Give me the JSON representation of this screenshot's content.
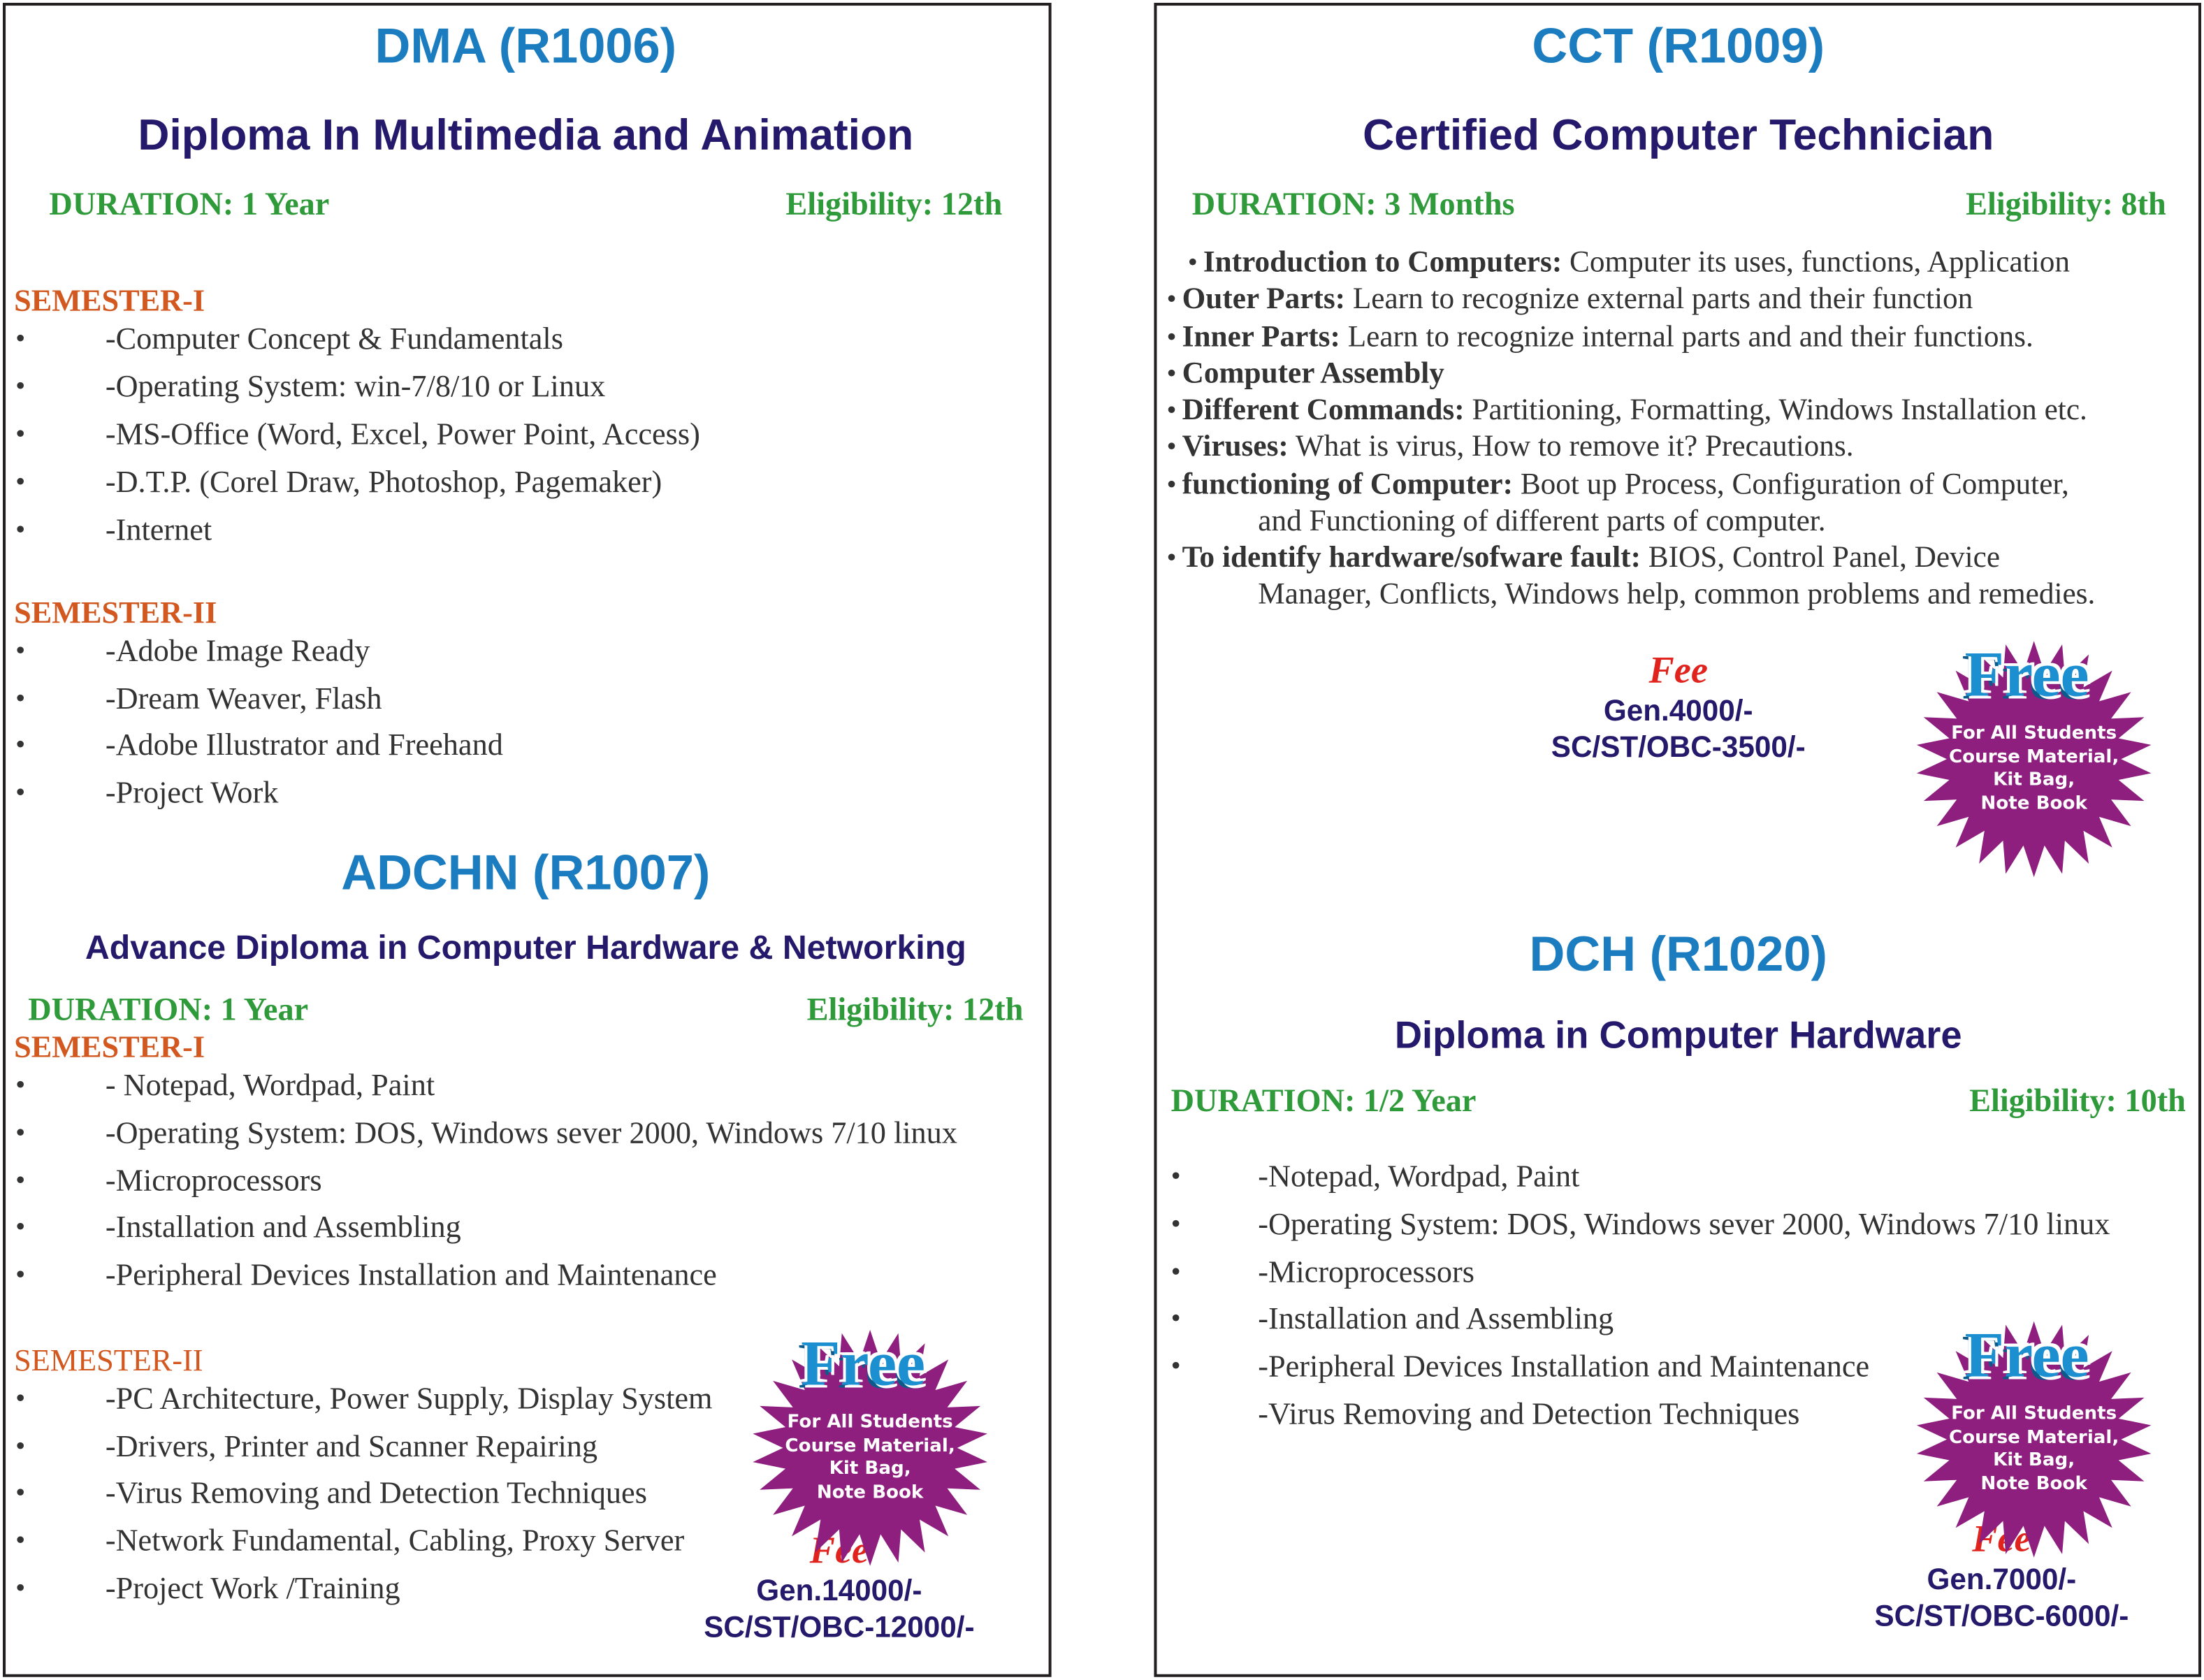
{
  "courses": [
    {
      "code": "DMA (R1006)",
      "name": "Diploma In Multimedia and Animation",
      "duration": "DURATION: 1 Year",
      "eligibility": "Eligibility: 12th",
      "semesters": [
        {
          "label": "SEMESTER-I",
          "items": [
            "-Computer Concept & Fundamentals",
            "-Operating System: win-7/8/10 or Linux",
            "-MS-Office (Word, Excel, Power Point, Access)",
            "-D.T.P. (Corel Draw, Photoshop, Pagemaker)",
            "-Internet"
          ]
        },
        {
          "label": "SEMESTER-II",
          "items": [
            "-Adobe Image Ready",
            "-Dream Weaver, Flash",
            "-Adobe Illustrator and Freehand",
            "-Project Work"
          ]
        }
      ]
    },
    {
      "code": "ADCHN (R1007)",
      "name": "Advance Diploma in Computer Hardware & Networking",
      "duration": "DURATION: 1 Year",
      "eligibility": "Eligibility: 12th",
      "semesters": [
        {
          "label": "SEMESTER-I",
          "items": [
            "- Notepad, Wordpad, Paint",
            "-Operating System: DOS, Windows sever 2000, Windows 7/10 linux",
            "-Microprocessors",
            "-Installation and Assembling",
            "-Peripheral Devices Installation and Maintenance"
          ]
        },
        {
          "label": "SEMESTER-II",
          "items": [
            "-PC Architecture, Power Supply, Display System",
            "-Drivers, Printer and Scanner Repairing",
            "-Virus Removing and Detection Techniques",
            "-Network Fundamental, Cabling, Proxy Server",
            "-Project Work /Training"
          ]
        }
      ],
      "fee": {
        "label": "Fee",
        "general": "Gen.14000/-",
        "reserved": "SC/ST/OBC-12000/-"
      }
    },
    {
      "code": "CCT (R1009)",
      "name": "Certified Computer Technician",
      "duration": "DURATION: 3 Months",
      "eligibility": "Eligibility: 8th",
      "topics": [
        {
          "bold": "Introduction to Computers:",
          "text": " Computer its uses, functions, Application"
        },
        {
          "bold": "Outer Parts:",
          "text": " Learn to recognize external parts and their function"
        },
        {
          "bold": "Inner Parts:",
          "text": " Learn to recognize internal parts and and their functions."
        },
        {
          "bold": "Computer Assembly",
          "text": ""
        },
        {
          "bold": "Different Commands:",
          "text": " Partitioning, Formatting, Windows Installation etc."
        },
        {
          "bold": "Viruses:",
          "text": " What is virus, How to remove it? Precautions."
        },
        {
          "bold": "functioning of Computer:",
          "text": " Boot up Process, Configuration of Computer,",
          "cont": "and Functioning of different parts of computer."
        },
        {
          "bold": "To identify hardware/sofware fault:",
          "text": " BIOS, Control Panel, Device",
          "cont": "Manager, Conflicts, Windows help, common problems and remedies."
        }
      ],
      "fee": {
        "label": "Fee",
        "general": "Gen.4000/-",
        "reserved": "SC/ST/OBC-3500/-"
      }
    },
    {
      "code": "DCH (R1020)",
      "name": "Diploma in Computer Hardware",
      "duration": "DURATION: 1/2 Year",
      "eligibility": "Eligibility: 10th",
      "items": [
        "-Notepad, Wordpad, Paint",
        "-Operating System: DOS, Windows sever 2000, Windows 7/10 linux",
        "-Microprocessors",
        "-Installation and Assembling",
        "-Peripheral Devices Installation and Maintenance",
        "-Virus Removing and Detection Techniques"
      ],
      "fee": {
        "label": "Fee",
        "general": "Gen.7000/-",
        "reserved": "SC/ST/OBC-6000/-"
      }
    }
  ],
  "free_badge": {
    "title": "Free",
    "lines": [
      "For All Students",
      "Course Material,",
      "Kit Bag,",
      "Note Book"
    ],
    "star_color": "#8e1f7f",
    "title_color": "#1c8fd0"
  },
  "colors": {
    "code": "#1b7dbf",
    "subtitle": "#25196b",
    "green": "#2e9a3a",
    "semester": "#d2581f",
    "fee": "#e0231c"
  }
}
